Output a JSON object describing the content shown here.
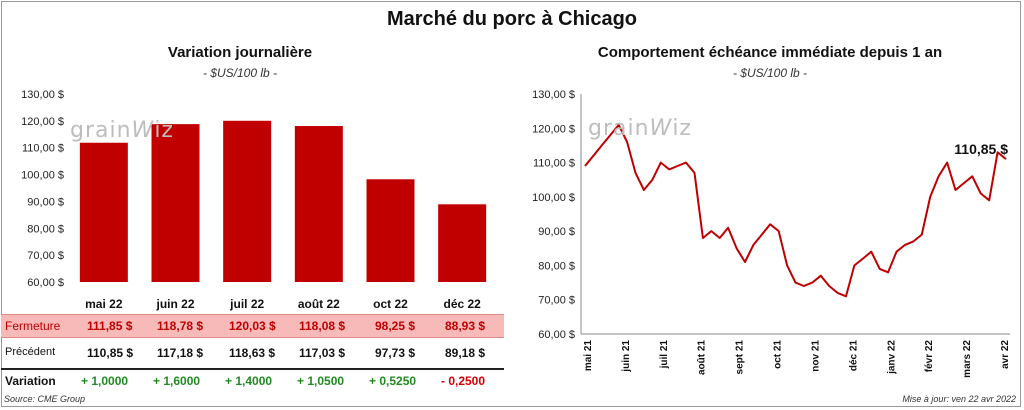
{
  "page": {
    "title": "Marché du porc à Chicago",
    "source": "Source: CME Group",
    "updated": "Mise à jour: ven 22 avr 2022"
  },
  "chart_data": [
    {
      "type": "bar",
      "title": "Variation  journalière",
      "subtitle": "- $US/100 lb -",
      "categories": [
        "mai 22",
        "juin 22",
        "juil 22",
        "août 22",
        "oct 22",
        "déc 22"
      ],
      "values": [
        111.85,
        118.78,
        120.03,
        118.08,
        98.25,
        88.93
      ],
      "ylim": [
        60,
        130
      ],
      "yticks": [
        "60,00 $",
        "70,00 $",
        "80,00 $",
        "90,00 $",
        "100,00 $",
        "110,00 $",
        "120,00 $",
        "130,00 $"
      ],
      "color": "#c00000",
      "watermark": "grainwiz"
    },
    {
      "type": "line",
      "title": "Comportement  échéance immédiate depuis 1 an",
      "subtitle": "- $US/100 lb -",
      "x": [
        "mai 21",
        "",
        "",
        "",
        "juin 21",
        "",
        "",
        "",
        "",
        "juil 21",
        "",
        "",
        "",
        "",
        "août 21",
        "",
        "",
        "",
        "sept 21",
        "",
        "",
        "",
        "oct 21",
        "",
        "",
        "",
        "",
        "nov 21",
        "",
        "",
        "",
        "déc 21",
        "",
        "",
        "",
        "",
        "janv 22",
        "",
        "",
        "",
        "févr 22",
        "",
        "",
        "",
        "mars 22",
        "",
        "",
        "",
        "avr 22",
        "",
        ""
      ],
      "values": [
        109,
        112,
        115,
        118,
        121,
        116,
        107,
        102,
        105,
        110,
        108,
        109,
        110,
        107,
        88,
        90,
        88,
        91,
        85,
        81,
        86,
        89,
        92,
        90,
        80,
        75,
        74,
        75,
        77,
        74,
        72,
        71,
        80,
        82,
        84,
        79,
        78,
        84,
        86,
        87,
        89,
        100,
        106,
        110,
        102,
        104,
        106,
        101,
        99,
        113,
        111
      ],
      "ylim": [
        60,
        130
      ],
      "yticks": [
        "60,00 $",
        "70,00 $",
        "80,00 $",
        "90,00 $",
        "100,00 $",
        "110,00 $",
        "120,00 $",
        "130,00 $"
      ],
      "xtick_labels": [
        "mai 21",
        "juin 21",
        "juil 21",
        "août 21",
        "sept 21",
        "oct 21",
        "nov 21",
        "déc 21",
        "janv 22",
        "févr 22",
        "mars 22",
        "avr 22"
      ],
      "last_label": "110,85 $",
      "color": "#c00000",
      "watermark": "grainwiz"
    }
  ],
  "table": {
    "rows": [
      {
        "label": "Fermeture",
        "values": [
          "111,85  $",
          "118,78  $",
          "120,03  $",
          "118,08  $",
          "98,25  $",
          "88,93  $"
        ]
      },
      {
        "label": "Précédent",
        "values": [
          "110,85  $",
          "117,18  $",
          "118,63  $",
          "117,03  $",
          "97,73  $",
          "89,18  $"
        ]
      },
      {
        "label": "Variation",
        "values": [
          "+ 1,0000",
          "+ 1,6000",
          "+ 1,4000",
          "+ 1,0500",
          "+ 0,5250",
          "- 0,2500"
        ]
      }
    ]
  }
}
